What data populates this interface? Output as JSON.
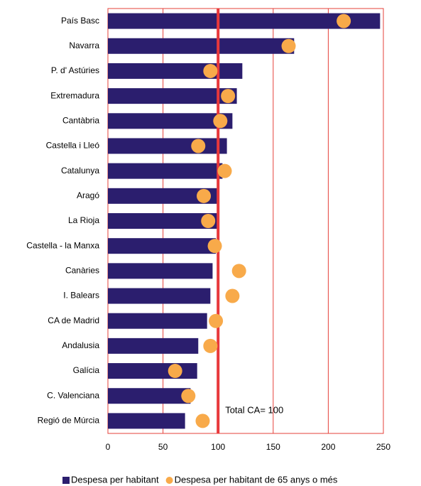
{
  "chart_data": {
    "type": "bar_dot",
    "orientation": "horizontal",
    "categories": [
      "País Basc",
      "Navarra",
      "P. d' Astúries",
      "Extremadura",
      "Cantàbria",
      "Castella i Lleó",
      "Catalunya",
      "Aragó",
      "La Rioja",
      "Castella - la Manxa",
      "Canàries",
      "I. Balears",
      "CA de Madrid",
      "Andalusia",
      "Galícia",
      "C. Valenciana",
      "Regió de Múrcia"
    ],
    "series": [
      {
        "name": "Despesa per habitant",
        "color": "#2b1e6e",
        "mark": "bar",
        "values": [
          247,
          169,
          122,
          117,
          113,
          108,
          104,
          99,
          99,
          98,
          95,
          93,
          90,
          82,
          81,
          75,
          70
        ]
      },
      {
        "name": "Despesa per habitant de 65 anys o més",
        "color": "#f8aa4a",
        "mark": "dot",
        "values": [
          214,
          164,
          93,
          109,
          102,
          82,
          106,
          87,
          91,
          97,
          119,
          113,
          98,
          93,
          61,
          73,
          86
        ]
      }
    ],
    "xlim": [
      0,
      250
    ],
    "xticks": [
      0,
      50,
      100,
      150,
      200,
      250
    ],
    "grid": true,
    "grid_color": "#e5403a",
    "reference_line": {
      "value": 100,
      "label": "Total CA= 100",
      "color": "#e8383b"
    },
    "legend": "bottom"
  }
}
